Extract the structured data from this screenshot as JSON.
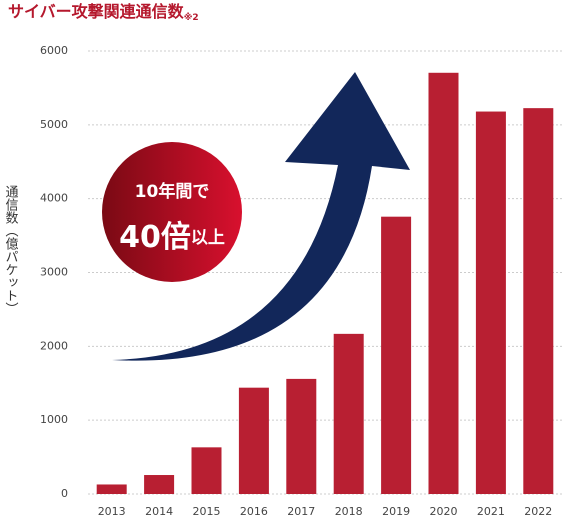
{
  "chart_data": {
    "type": "bar",
    "title": "サイバー攻撃関連通信数",
    "title_note": "※2",
    "y_label": "通信数（億パケット）",
    "categories": [
      "2013",
      "2014",
      "2015",
      "2016",
      "2017",
      "2018",
      "2019",
      "2020",
      "2021",
      "2022"
    ],
    "values": [
      129,
      257,
      632,
      1440,
      1559,
      2169,
      3756,
      5705,
      5180,
      5226
    ],
    "color": "#b81f32",
    "ylim": [
      0,
      6000
    ],
    "yticks": [
      0,
      1000,
      2000,
      3000,
      4000,
      5000,
      6000
    ],
    "grid": true,
    "annotation": {
      "line1": "10年間で",
      "emphasis": "40倍",
      "suffix": "以上"
    }
  }
}
